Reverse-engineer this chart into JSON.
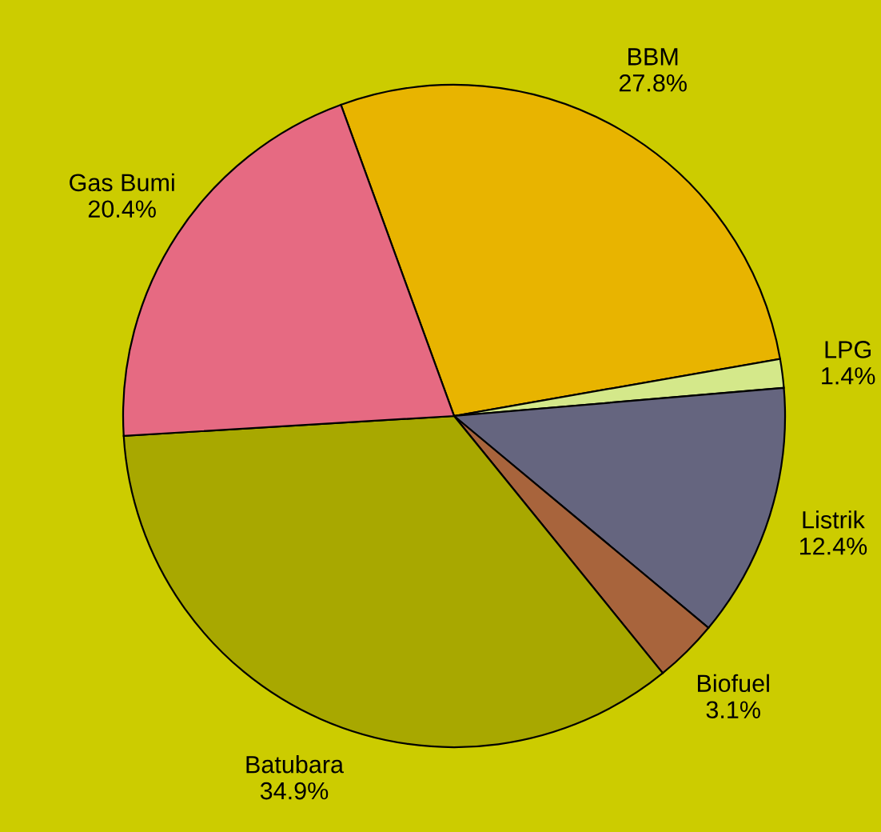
{
  "chart_data": {
    "type": "pie",
    "categories": [
      "BBM",
      "LPG",
      "Listrik",
      "Biofuel",
      "Batubara",
      "Gas Bumi"
    ],
    "values": [
      27.8,
      1.4,
      12.4,
      3.1,
      34.9,
      20.4
    ],
    "colors": [
      "#e8b400",
      "#d4e88a",
      "#65657f",
      "#a8643c",
      "#a8a800",
      "#e66a82"
    ],
    "value_labels": [
      "27.8%",
      "1.4%",
      "12.4%",
      "3.1%",
      "34.9%",
      "20.4%"
    ]
  }
}
